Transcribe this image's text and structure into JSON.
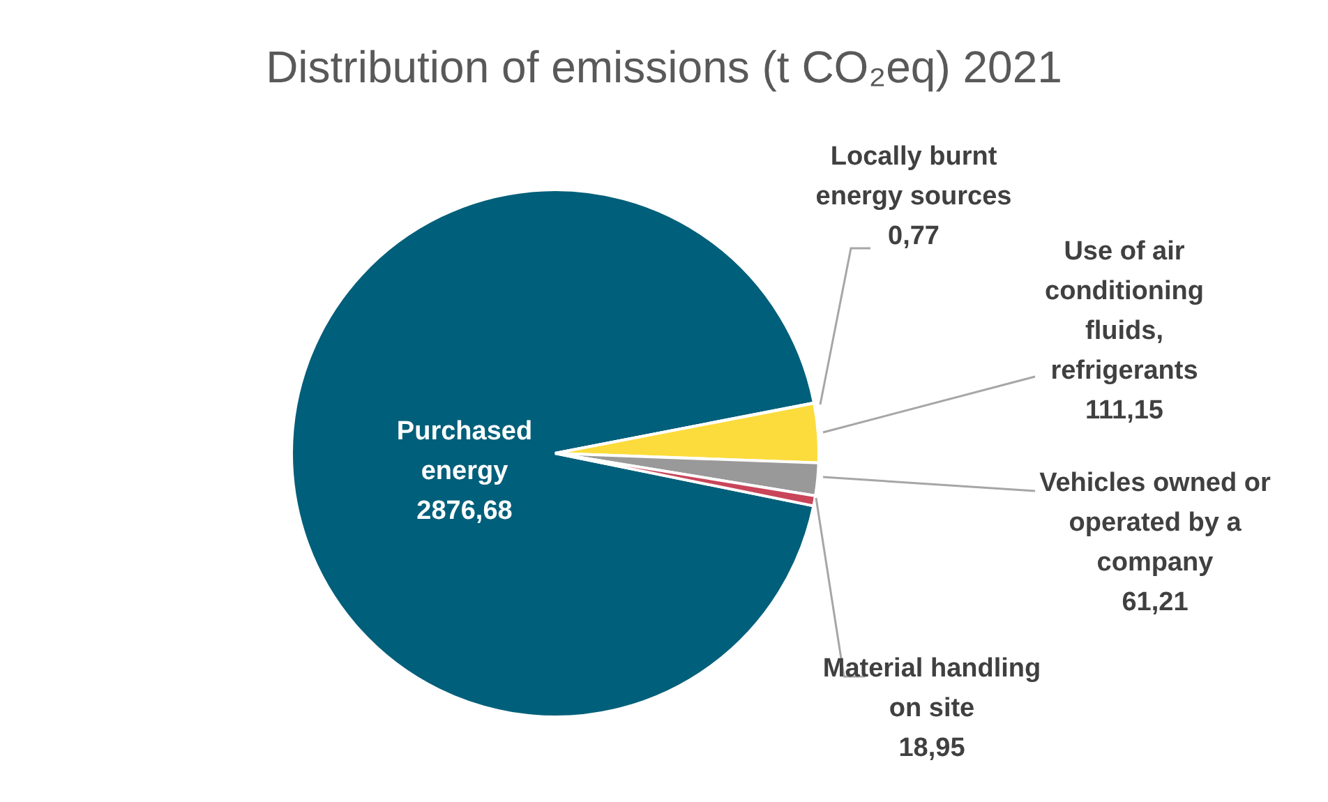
{
  "chart_data": {
    "type": "pie",
    "title": "Distribution of emissions (t CO₂eq) 2021",
    "categories": [
      "Purchased energy",
      "Locally burnt energy sources",
      "Use of air conditioning fluids, refrigerants",
      "Vehicles owned or operated by a company",
      "Material handling on site"
    ],
    "values": [
      2876.68,
      0.77,
      111.15,
      61.21,
      18.95
    ],
    "colors": [
      "#005f7a",
      "#7f7f7f",
      "#fbdc3c",
      "#999999",
      "#c8455a"
    ],
    "value_labels": [
      "2876,68",
      "0,77",
      "111,15",
      "61,21",
      "18,95"
    ],
    "legend": false
  }
}
